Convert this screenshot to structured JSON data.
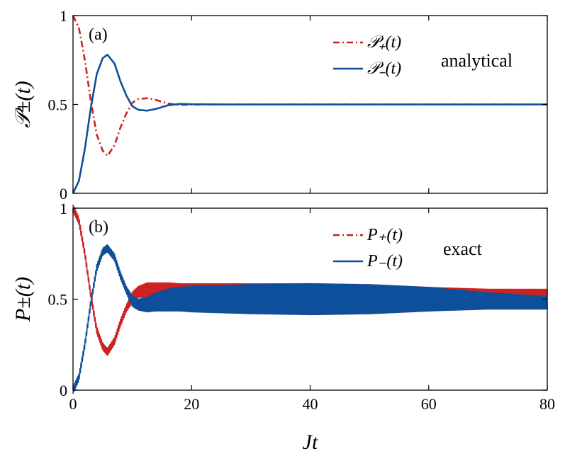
{
  "chart_data": [
    {
      "type": "line",
      "panel_label": "(a)",
      "annotation": "analytical",
      "xlabel": "",
      "ylabel": "𝒫±(t)",
      "xlim": [
        0,
        80
      ],
      "ylim": [
        0,
        1
      ],
      "x_ticks": [
        0,
        20,
        40,
        60,
        80
      ],
      "y_ticks": [
        "0",
        "0.5",
        "1"
      ],
      "x_tick_labels_shown": false,
      "grid": false,
      "legend_position": "top-right",
      "colors": {
        "plus": "#cc2222",
        "minus": "#0d4f9a"
      },
      "series": [
        {
          "name": "𝒫₊(t)",
          "style": "dash-dot",
          "x": [
            0,
            1,
            2,
            3,
            4,
            5,
            5.8,
            7,
            8,
            9,
            10,
            11,
            12.5,
            14,
            15,
            16,
            18,
            20,
            25,
            30,
            40,
            60,
            80
          ],
          "y": [
            1.0,
            0.93,
            0.75,
            0.52,
            0.33,
            0.24,
            0.21,
            0.27,
            0.37,
            0.45,
            0.51,
            0.53,
            0.535,
            0.525,
            0.515,
            0.505,
            0.497,
            0.499,
            0.5,
            0.5,
            0.5,
            0.5,
            0.5
          ]
        },
        {
          "name": "𝒫₋(t)",
          "style": "solid",
          "x": [
            0,
            1,
            2,
            3,
            4,
            5,
            5.8,
            7,
            8,
            9,
            10,
            11,
            12.5,
            14,
            15,
            16,
            18,
            20,
            25,
            30,
            40,
            60,
            80
          ],
          "y": [
            0.0,
            0.07,
            0.25,
            0.48,
            0.67,
            0.76,
            0.78,
            0.73,
            0.63,
            0.55,
            0.49,
            0.47,
            0.465,
            0.475,
            0.485,
            0.495,
            0.503,
            0.501,
            0.5,
            0.5,
            0.5,
            0.5,
            0.5
          ]
        }
      ]
    },
    {
      "type": "line",
      "panel_label": "(b)",
      "annotation": "exact",
      "xlabel": "Jt",
      "ylabel": "P±(t)",
      "xlim": [
        0,
        80
      ],
      "ylim": [
        0,
        1
      ],
      "x_ticks": [
        "0",
        "20",
        "40",
        "60",
        "80"
      ],
      "y_ticks": [
        "0",
        "0.5",
        "1"
      ],
      "grid": false,
      "legend_position": "top-right",
      "colors": {
        "plus": "#cc2222",
        "minus": "#0d4f9a"
      },
      "series": [
        {
          "name": "P₊(t)",
          "style": "dash-dot",
          "x": [
            0,
            1,
            2,
            3,
            4,
            5,
            5.8,
            7,
            8,
            9,
            10,
            11,
            12.5,
            14,
            16,
            18,
            20,
            25,
            30,
            40,
            50,
            60,
            70,
            80
          ],
          "y": [
            1.0,
            0.93,
            0.75,
            0.52,
            0.33,
            0.24,
            0.21,
            0.27,
            0.37,
            0.45,
            0.51,
            0.54,
            0.55,
            0.54,
            0.53,
            0.52,
            0.515,
            0.51,
            0.505,
            0.5,
            0.5,
            0.5,
            0.51,
            0.52
          ],
          "envelope": [
            0.02,
            0.02,
            0.02,
            0.02,
            0.02,
            0.02,
            0.02,
            0.02,
            0.02,
            0.02,
            0.03,
            0.03,
            0.04,
            0.05,
            0.06,
            0.065,
            0.07,
            0.075,
            0.08,
            0.085,
            0.08,
            0.065,
            0.045,
            0.035
          ]
        },
        {
          "name": "P₋(t)",
          "style": "solid",
          "x": [
            0,
            1,
            2,
            3,
            4,
            5,
            5.8,
            7,
            8,
            9,
            10,
            11,
            12.5,
            14,
            16,
            18,
            20,
            25,
            30,
            40,
            50,
            60,
            70,
            80
          ],
          "y": [
            0.0,
            0.07,
            0.25,
            0.48,
            0.67,
            0.76,
            0.78,
            0.73,
            0.63,
            0.55,
            0.49,
            0.47,
            0.47,
            0.485,
            0.495,
            0.5,
            0.5,
            0.5,
            0.5,
            0.5,
            0.5,
            0.5,
            0.49,
            0.48
          ],
          "envelope": [
            0.02,
            0.02,
            0.02,
            0.02,
            0.02,
            0.02,
            0.02,
            0.02,
            0.02,
            0.02,
            0.03,
            0.03,
            0.04,
            0.05,
            0.06,
            0.065,
            0.07,
            0.075,
            0.08,
            0.085,
            0.08,
            0.065,
            0.045,
            0.035
          ]
        }
      ]
    }
  ]
}
